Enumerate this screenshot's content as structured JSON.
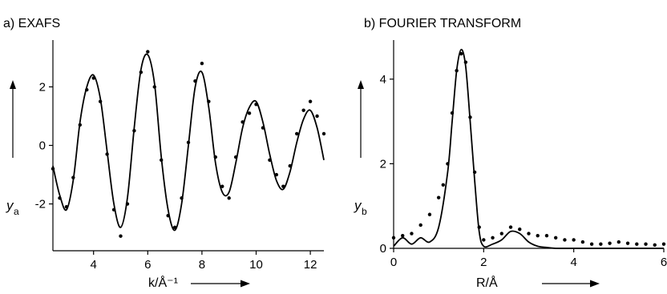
{
  "chart_data": [
    {
      "type": "line",
      "title": "a) EXAFS",
      "ylabel": "y",
      "ylabel_sub": "a",
      "xlabel": "k/Å⁻¹",
      "xlim": [
        2.5,
        12.5
      ],
      "ylim": [
        -3.6,
        3.6
      ],
      "xticks": [
        4,
        6,
        8,
        10,
        12
      ],
      "yticks": [
        -2,
        0,
        2
      ],
      "grid": false,
      "series": [
        {
          "style": "solid-line",
          "x": [
            2.5,
            2.75,
            3.0,
            3.25,
            3.5,
            3.75,
            4.0,
            4.25,
            4.5,
            4.75,
            5.0,
            5.25,
            5.5,
            5.75,
            6.0,
            6.25,
            6.5,
            6.75,
            7.0,
            7.25,
            7.5,
            7.75,
            8.0,
            8.25,
            8.5,
            8.75,
            9.0,
            9.25,
            9.5,
            9.75,
            10.0,
            10.25,
            10.5,
            10.75,
            11.0,
            11.25,
            11.5,
            11.75,
            12.0,
            12.25,
            12.5
          ],
          "y": [
            -0.7,
            -1.7,
            -2.2,
            -1.2,
            0.8,
            2.0,
            2.4,
            1.6,
            -0.2,
            -2.0,
            -2.8,
            -1.8,
            0.6,
            2.6,
            3.1,
            2.1,
            -0.4,
            -2.2,
            -2.9,
            -2.0,
            0.0,
            2.0,
            2.5,
            1.3,
            -0.6,
            -1.6,
            -1.6,
            -0.6,
            0.6,
            1.3,
            1.5,
            0.8,
            -0.3,
            -1.2,
            -1.5,
            -0.9,
            0.1,
            0.9,
            1.2,
            0.6,
            -0.5
          ]
        },
        {
          "style": "dots",
          "x": [
            2.5,
            2.75,
            3.0,
            3.25,
            3.5,
            3.75,
            4.0,
            4.25,
            4.5,
            4.75,
            5.0,
            5.25,
            5.5,
            5.75,
            6.0,
            6.25,
            6.5,
            6.75,
            7.0,
            7.25,
            7.5,
            7.75,
            8.0,
            8.25,
            8.5,
            8.75,
            9.0,
            9.25,
            9.5,
            9.75,
            10.0,
            10.25,
            10.5,
            10.75,
            11.0,
            11.25,
            11.5,
            11.75,
            12.0,
            12.25,
            12.5
          ],
          "y": [
            -0.8,
            -1.8,
            -2.1,
            -1.1,
            0.7,
            1.9,
            2.3,
            1.5,
            -0.3,
            -2.2,
            -3.1,
            -2.0,
            0.5,
            2.5,
            3.2,
            2.0,
            -0.5,
            -2.4,
            -2.8,
            -1.8,
            0.1,
            2.2,
            2.8,
            1.5,
            -0.4,
            -1.4,
            -1.8,
            -0.4,
            0.8,
            1.1,
            1.4,
            0.6,
            -0.5,
            -1.0,
            -1.4,
            -0.7,
            0.4,
            1.2,
            1.5,
            1.0,
            0.4
          ]
        }
      ]
    },
    {
      "type": "line",
      "title": "b) FOURIER TRANSFORM",
      "ylabel": "y",
      "ylabel_sub": "b",
      "xlabel": "R/Å",
      "xlim": [
        0,
        6
      ],
      "ylim": [
        0,
        5.0
      ],
      "xticks": [
        0,
        2,
        4,
        6
      ],
      "yticks": [
        0,
        2,
        4
      ],
      "grid": false,
      "series": [
        {
          "style": "solid-line",
          "x": [
            0.0,
            0.2,
            0.4,
            0.6,
            0.8,
            1.0,
            1.2,
            1.3,
            1.4,
            1.5,
            1.6,
            1.7,
            1.8,
            1.9,
            2.0,
            2.2,
            2.4,
            2.6,
            2.8,
            3.0,
            3.2,
            3.4,
            3.6,
            4.0,
            4.5,
            5.0,
            6.0
          ],
          "y": [
            0.05,
            0.25,
            0.1,
            0.25,
            0.15,
            0.5,
            1.8,
            3.0,
            4.2,
            4.7,
            4.3,
            3.0,
            1.6,
            0.4,
            0.05,
            0.1,
            0.2,
            0.4,
            0.35,
            0.15,
            0.05,
            0.02,
            0.0,
            0.0,
            0.0,
            0.0,
            0.0
          ]
        },
        {
          "style": "dots",
          "x": [
            0.0,
            0.2,
            0.4,
            0.6,
            0.8,
            1.0,
            1.1,
            1.2,
            1.3,
            1.4,
            1.5,
            1.6,
            1.7,
            1.8,
            1.9,
            2.0,
            2.2,
            2.4,
            2.6,
            2.8,
            3.0,
            3.2,
            3.4,
            3.6,
            3.8,
            4.0,
            4.2,
            4.4,
            4.6,
            4.8,
            5.0,
            5.2,
            5.4,
            5.6,
            5.8,
            6.0
          ],
          "y": [
            0.25,
            0.3,
            0.35,
            0.55,
            0.8,
            1.2,
            1.5,
            2.0,
            3.2,
            4.2,
            4.6,
            4.4,
            3.1,
            1.8,
            0.5,
            0.2,
            0.25,
            0.35,
            0.5,
            0.45,
            0.35,
            0.3,
            0.3,
            0.25,
            0.2,
            0.2,
            0.15,
            0.1,
            0.1,
            0.12,
            0.15,
            0.12,
            0.1,
            0.1,
            0.08,
            0.1
          ]
        }
      ]
    }
  ]
}
